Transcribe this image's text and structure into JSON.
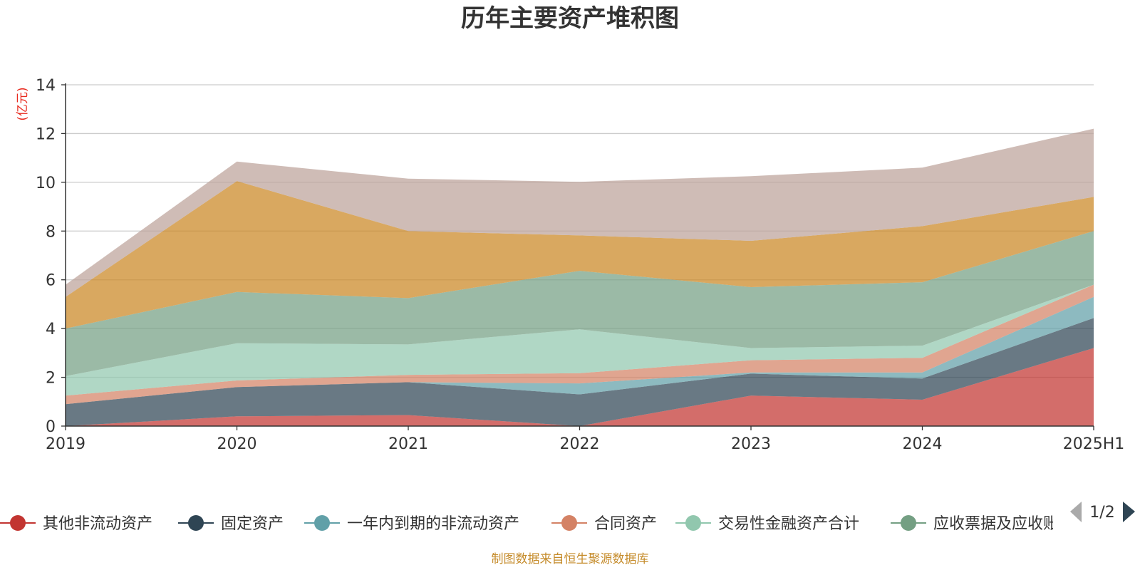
{
  "chart_data": {
    "type": "area",
    "title": "历年主要资产堆积图",
    "ylabel": "(亿元)",
    "ylim": [
      0,
      14
    ],
    "yticks": [
      0,
      2,
      4,
      6,
      8,
      10,
      12,
      14
    ],
    "grid": true,
    "stacked": true,
    "categories": [
      "2019",
      "2020",
      "2021",
      "2022",
      "2023",
      "2024",
      "2025H1"
    ],
    "series": [
      {
        "name": "其他非流动资产",
        "color": "#c23531",
        "values": [
          0.0,
          0.4,
          0.45,
          0.0,
          1.25,
          1.08,
          3.2
        ]
      },
      {
        "name": "固定资产",
        "color": "#2f4554",
        "values": [
          0.9,
          1.2,
          1.35,
          1.3,
          0.9,
          0.87,
          1.23
        ]
      },
      {
        "name": "一年内到期的非流动资产",
        "color": "#61a0a8",
        "values": [
          0.0,
          0.0,
          0.0,
          0.45,
          0.05,
          0.25,
          0.87
        ]
      },
      {
        "name": "合同资产",
        "color": "#d48265",
        "values": [
          0.35,
          0.27,
          0.3,
          0.42,
          0.5,
          0.6,
          0.5
        ]
      },
      {
        "name": "交易性金融资产合计",
        "color": "#91c7ae",
        "values": [
          0.8,
          1.53,
          1.25,
          1.8,
          0.5,
          0.5,
          0.0
        ]
      },
      {
        "name": "应收票据及应收账款",
        "color": "#749f83",
        "values": [
          1.95,
          2.1,
          1.9,
          2.4,
          2.5,
          2.6,
          2.2
        ]
      },
      {
        "name": "",
        "color": "#ca8622",
        "values": [
          1.3,
          4.55,
          2.75,
          1.45,
          1.9,
          2.3,
          1.4
        ]
      },
      {
        "name": "",
        "color": "#bda29a",
        "values": [
          0.5,
          0.8,
          2.15,
          2.2,
          2.65,
          2.4,
          2.8
        ]
      }
    ]
  },
  "legend": {
    "items": [
      "其他非流动资产",
      "固定资产",
      "一年内到期的非流动资产",
      "合同资产",
      "交易性金融资产合计",
      "应收票据及应收账款"
    ],
    "page_indicator": "1/2"
  },
  "source_note": "制图数据来自恒生聚源数据库"
}
